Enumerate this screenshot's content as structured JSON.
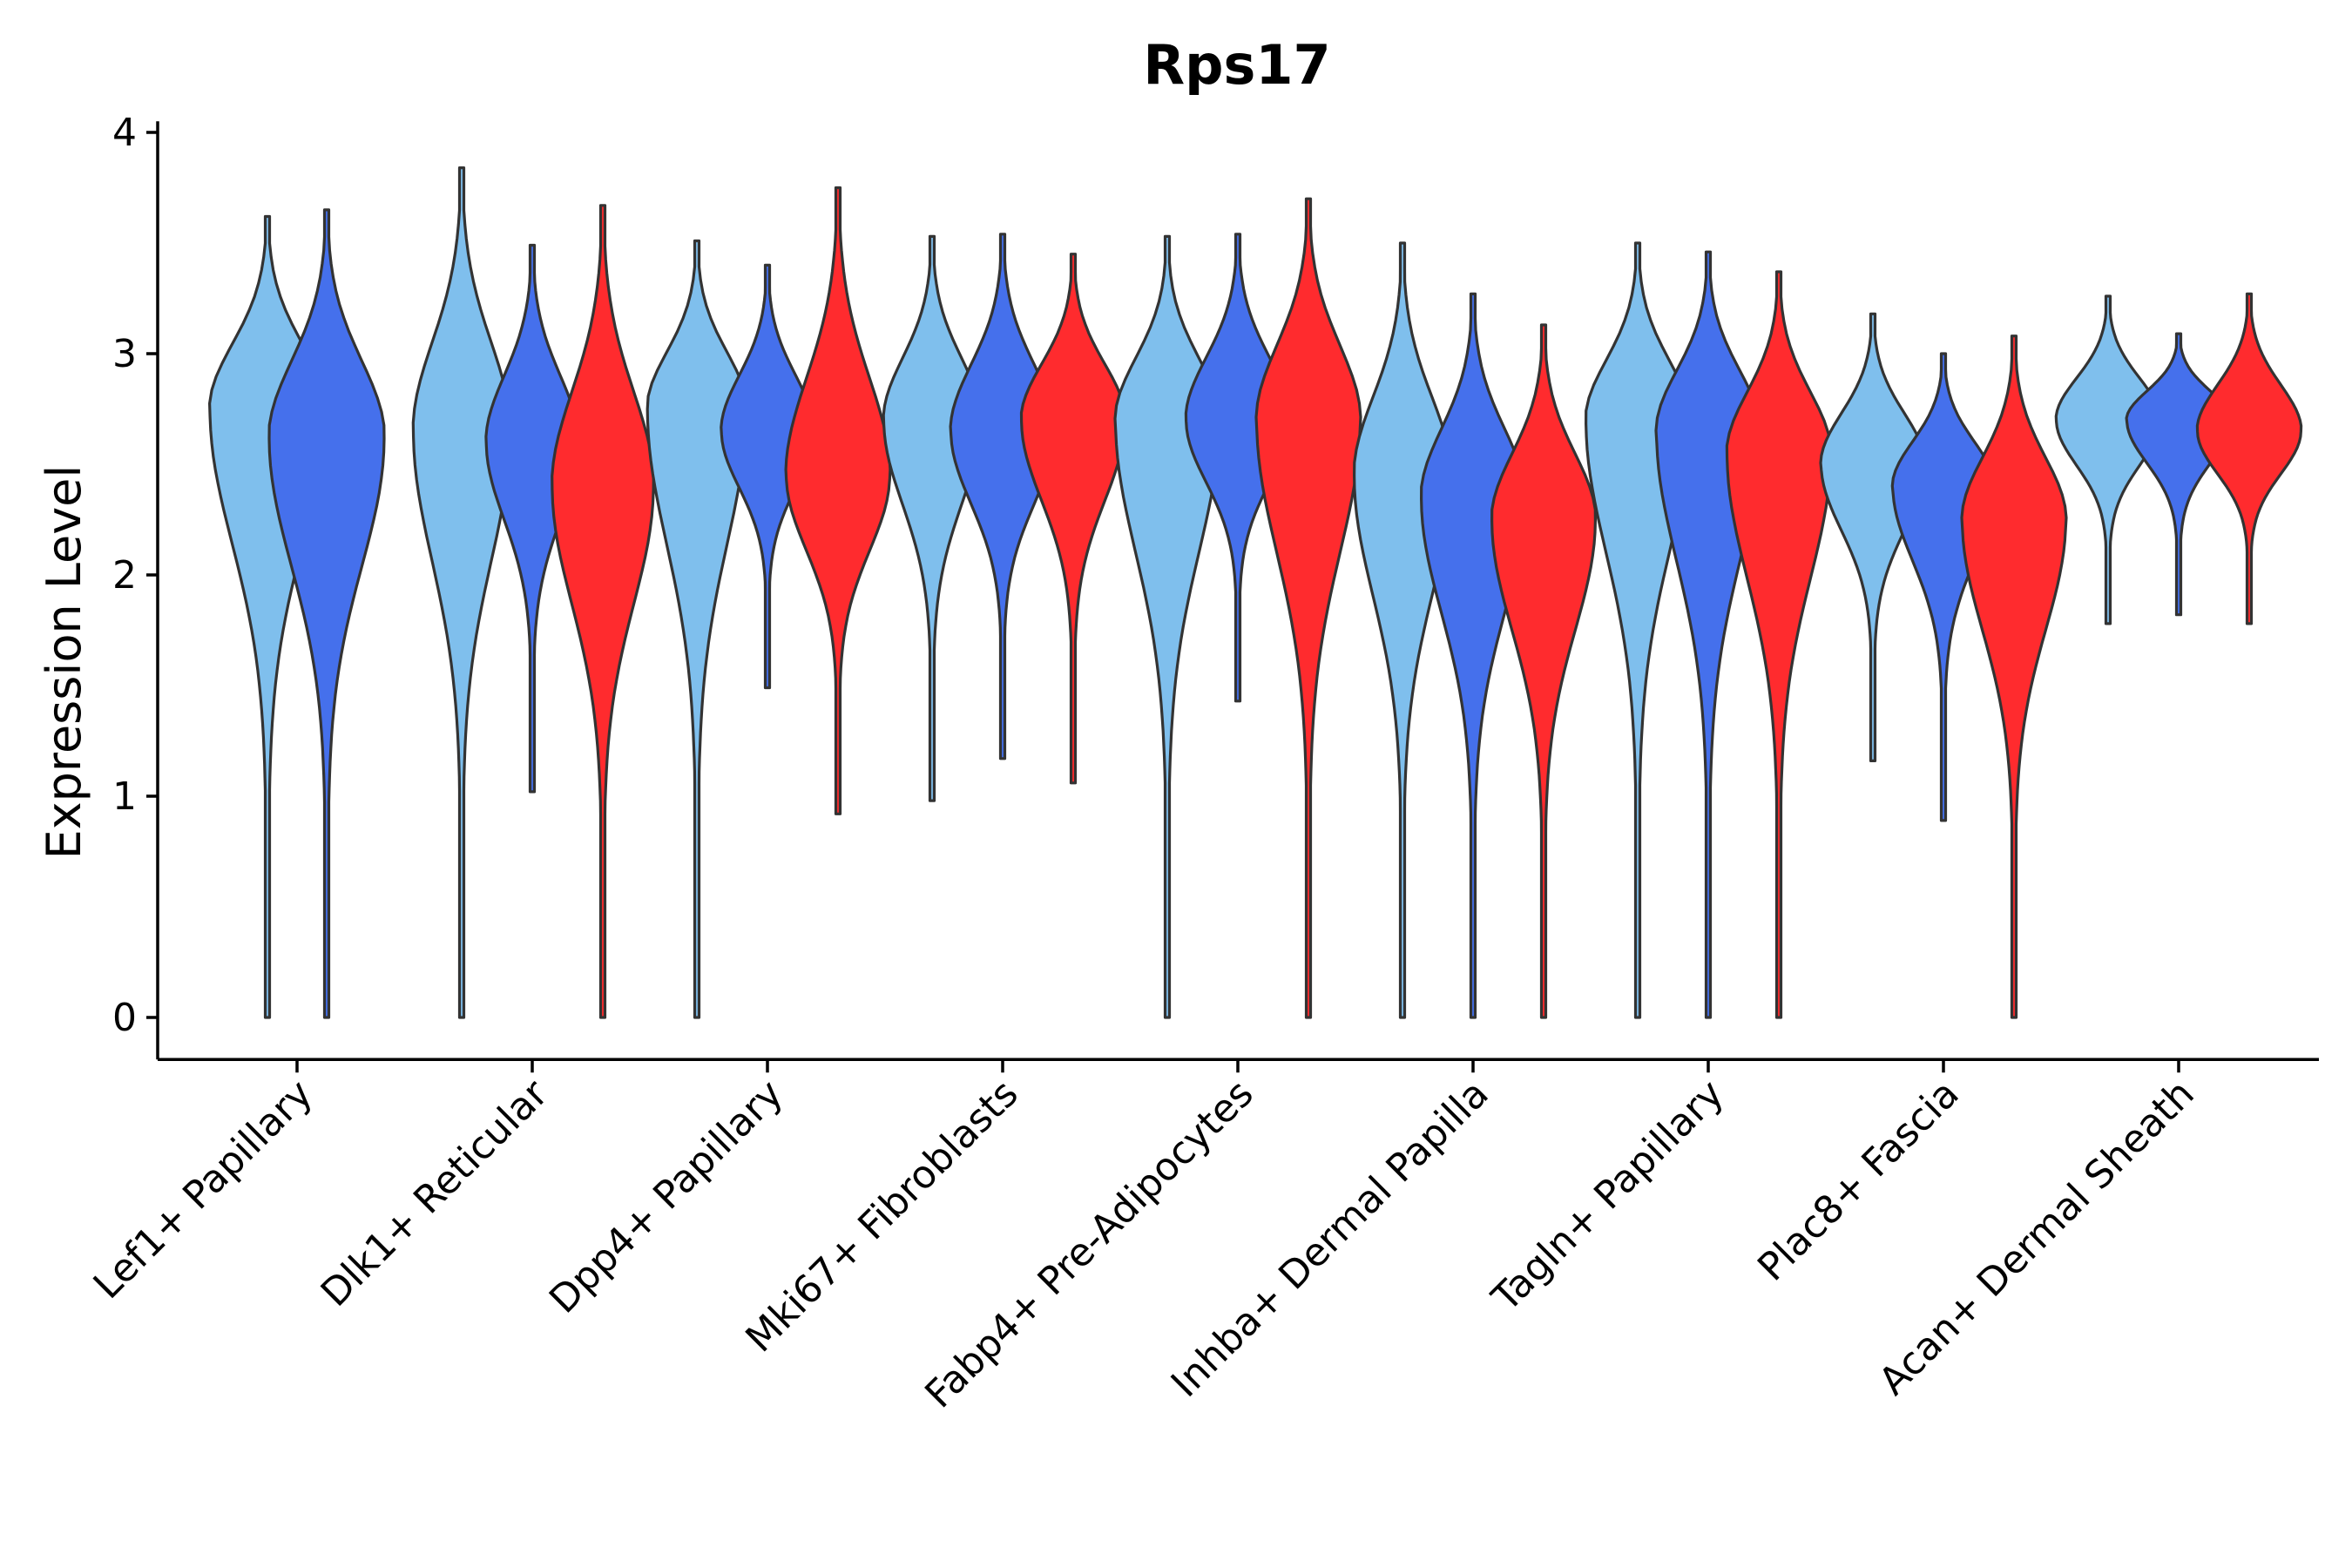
{
  "chart_data": {
    "type": "violin",
    "title": "Rps17",
    "xlabel": "",
    "ylabel": "Expression Level",
    "ylim": [
      -0.19,
      4.05
    ],
    "yticks": [
      0,
      1,
      2,
      3,
      4
    ],
    "groups": [
      "Lef1+ Papillary",
      "Dlk1+ Reticular",
      "Dpp4+ Papillary",
      "Mki67+ Fibroblasts",
      "Fabp4+ Pre-Adipocytes",
      "Inhba+ Dermal Papilla",
      "Tagln+ Papillary",
      "Plac8+ Fascia",
      "Acan+ Dermal Sheath"
    ],
    "colors": {
      "sky": "#7fbfed",
      "royal": "#4570ec",
      "red": "#ff2b2e",
      "outline": "#333333"
    },
    "violins": [
      {
        "group": 0,
        "color": "sky",
        "min": 0,
        "max": 3.62,
        "mode": 2.75,
        "width": 0.5
      },
      {
        "group": 0,
        "color": "royal",
        "min": 0,
        "max": 3.65,
        "mode": 2.62,
        "width": 0.5
      },
      {
        "group": 1,
        "color": "sky",
        "min": 0,
        "max": 3.84,
        "mode": 2.65,
        "width": 0.42
      },
      {
        "group": 1,
        "color": "royal",
        "min": 1.02,
        "max": 3.49,
        "mode": 2.6,
        "width": 0.4
      },
      {
        "group": 1,
        "color": "red",
        "min": 0,
        "max": 3.67,
        "mode": 2.4,
        "width": 0.44
      },
      {
        "group": 2,
        "color": "sky",
        "min": 0,
        "max": 3.51,
        "mode": 2.75,
        "width": 0.43
      },
      {
        "group": 2,
        "color": "royal",
        "min": 1.49,
        "max": 3.4,
        "mode": 2.65,
        "width": 0.4
      },
      {
        "group": 2,
        "color": "red",
        "min": 0.92,
        "max": 3.75,
        "mode": 2.45,
        "width": 0.45
      },
      {
        "group": 3,
        "color": "sky",
        "min": 0.98,
        "max": 3.53,
        "mode": 2.7,
        "width": 0.42
      },
      {
        "group": 3,
        "color": "royal",
        "min": 1.17,
        "max": 3.54,
        "mode": 2.65,
        "width": 0.45
      },
      {
        "group": 3,
        "color": "red",
        "min": 1.06,
        "max": 3.45,
        "mode": 2.7,
        "width": 0.45
      },
      {
        "group": 4,
        "color": "sky",
        "min": 0,
        "max": 3.53,
        "mode": 2.7,
        "width": 0.45
      },
      {
        "group": 4,
        "color": "royal",
        "min": 1.43,
        "max": 3.54,
        "mode": 2.7,
        "width": 0.45
      },
      {
        "group": 4,
        "color": "red",
        "min": 0,
        "max": 3.7,
        "mode": 2.7,
        "width": 0.45
      },
      {
        "group": 5,
        "color": "sky",
        "min": 0,
        "max": 3.5,
        "mode": 2.45,
        "width": 0.42
      },
      {
        "group": 5,
        "color": "royal",
        "min": 0,
        "max": 3.27,
        "mode": 2.35,
        "width": 0.45
      },
      {
        "group": 5,
        "color": "red",
        "min": 0,
        "max": 3.13,
        "mode": 2.25,
        "width": 0.45
      },
      {
        "group": 6,
        "color": "sky",
        "min": 0,
        "max": 3.5,
        "mode": 2.7,
        "width": 0.45
      },
      {
        "group": 6,
        "color": "royal",
        "min": 0,
        "max": 3.46,
        "mode": 2.65,
        "width": 0.45
      },
      {
        "group": 6,
        "color": "red",
        "min": 0,
        "max": 3.37,
        "mode": 2.55,
        "width": 0.45
      },
      {
        "group": 7,
        "color": "sky",
        "min": 1.16,
        "max": 3.18,
        "mode": 2.5,
        "width": 0.45
      },
      {
        "group": 7,
        "color": "royal",
        "min": 0.89,
        "max": 3.0,
        "mode": 2.4,
        "width": 0.44
      },
      {
        "group": 7,
        "color": "red",
        "min": 0,
        "max": 3.08,
        "mode": 2.25,
        "width": 0.45
      },
      {
        "group": 8,
        "color": "sky",
        "min": 1.78,
        "max": 3.26,
        "mode": 2.7,
        "width": 0.45
      },
      {
        "group": 8,
        "color": "royal",
        "min": 1.82,
        "max": 3.09,
        "mode": 2.7,
        "width": 0.45
      },
      {
        "group": 8,
        "color": "red",
        "min": 1.78,
        "max": 3.27,
        "mode": 2.65,
        "width": 0.45
      }
    ]
  }
}
